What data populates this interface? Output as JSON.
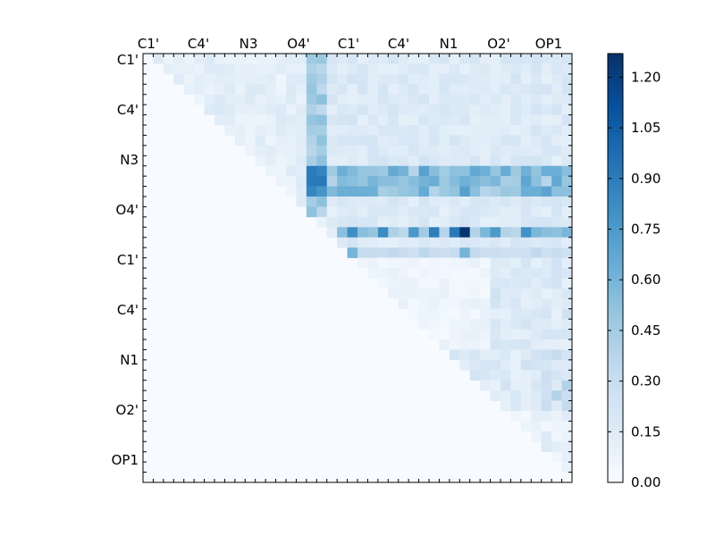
{
  "chart_data": {
    "type": "heatmap",
    "title": "",
    "x_tick_labels": [
      "C1'",
      "C4'",
      "N3",
      "O4'",
      "C1'",
      "C4'",
      "N1",
      "O2'",
      "OP1"
    ],
    "y_tick_labels": [
      "C1'",
      "C4'",
      "N3",
      "O4'",
      "C1'",
      "C4'",
      "N1",
      "O2'",
      "OP1"
    ],
    "x_label_position": "top",
    "grid": false,
    "colormap": "Blues",
    "vmin": 0.0,
    "vmax": 1.27,
    "colorbar": {
      "position": "right",
      "ticks": [
        "0.00",
        "0.15",
        "0.30",
        "0.45",
        "0.60",
        "0.75",
        "0.90",
        "1.05",
        "1.20"
      ]
    },
    "size": 42,
    "values": "upper-triangular distance-like matrix; cell values approximated in the drawing script"
  },
  "colors": {
    "low": "#f7fbff",
    "mid": "#6baed6",
    "high": "#08306b"
  }
}
